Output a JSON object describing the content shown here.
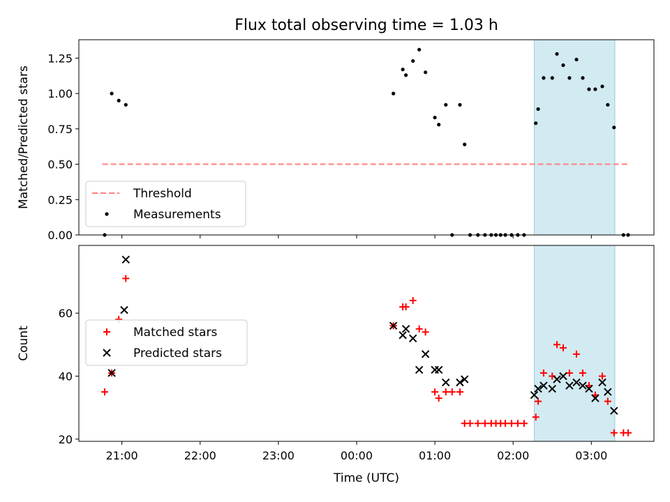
{
  "figure": {
    "title": "Flux total observing time = 1.03 h"
  },
  "chart_data": [
    {
      "type": "scatter",
      "title": "Flux total observing time = 1.03 h",
      "xlabel": "",
      "ylabel": "Matched/Predicted stars",
      "xlim": [
        -3.55,
        3.8
      ],
      "ylim": [
        0,
        1.38
      ],
      "yticks": [
        0.0,
        0.25,
        0.5,
        0.75,
        1.0,
        1.25
      ],
      "ytick_labels": [
        "0.00",
        "0.25",
        "0.50",
        "0.75",
        "1.00",
        "1.25"
      ],
      "x_units": "hours relative to 00:00 UTC",
      "shaded_region": {
        "x": [
          2.27,
          3.3
        ],
        "color": "#add8e6"
      },
      "legend": {
        "position": "lower-left"
      },
      "series": [
        {
          "name": "Threshold",
          "kind": "line",
          "style": "dashed",
          "color": "#ff7f7f",
          "x": [
            -3.25,
            3.47
          ],
          "y": [
            0.5,
            0.5
          ]
        },
        {
          "name": "Measurements",
          "kind": "points",
          "marker": "dot",
          "color": "#000000",
          "x": [
            -3.22,
            -3.13,
            -3.04,
            -2.95,
            0.47,
            0.59,
            0.63,
            0.72,
            0.8,
            0.88,
            1.0,
            1.05,
            1.14,
            1.22,
            1.32,
            1.38,
            1.45,
            1.55,
            1.64,
            1.72,
            1.78,
            1.84,
            1.9,
            1.98,
            2.06,
            2.14,
            2.29,
            2.32,
            2.39,
            2.5,
            2.56,
            2.64,
            2.72,
            2.81,
            2.89,
            2.97,
            3.05,
            3.14,
            3.21,
            3.29,
            3.41,
            3.47
          ],
          "y": [
            0.0,
            1.0,
            0.95,
            0.92,
            1.0,
            1.17,
            1.13,
            1.23,
            1.31,
            1.15,
            0.83,
            0.78,
            0.92,
            0.0,
            0.92,
            0.64,
            0.0,
            0.0,
            0.0,
            0.0,
            0.0,
            0.0,
            0.0,
            0.0,
            0.0,
            0.0,
            0.79,
            0.89,
            1.11,
            1.11,
            1.28,
            1.2,
            1.11,
            1.24,
            1.11,
            1.03,
            1.03,
            1.05,
            0.92,
            0.76,
            0.0,
            0.0
          ]
        }
      ]
    },
    {
      "type": "scatter",
      "xlabel": "Time (UTC)",
      "ylabel": "Count",
      "xlim": [
        -3.55,
        3.8
      ],
      "ylim": [
        19.3,
        81.5
      ],
      "yticks": [
        20,
        40,
        60
      ],
      "xticks": [
        -3,
        -2,
        -1,
        0,
        1,
        2,
        3
      ],
      "xtick_labels": [
        "21:00",
        "22:00",
        "23:00",
        "00:00",
        "01:00",
        "02:00",
        "03:00"
      ],
      "x_units": "hours relative to 00:00 UTC",
      "shaded_region": {
        "x": [
          2.27,
          3.3
        ],
        "color": "#add8e6"
      },
      "legend": {
        "position": "center-left"
      },
      "series": [
        {
          "name": "Matched stars",
          "kind": "points",
          "marker": "plus",
          "color": "#ff0000",
          "x": [
            -3.22,
            -3.13,
            -3.04,
            -2.95,
            0.47,
            0.59,
            0.63,
            0.72,
            0.8,
            0.88,
            1.0,
            1.05,
            1.14,
            1.22,
            1.32,
            1.38,
            1.45,
            1.55,
            1.64,
            1.72,
            1.78,
            1.84,
            1.9,
            1.98,
            2.06,
            2.14,
            2.29,
            2.32,
            2.39,
            2.5,
            2.56,
            2.64,
            2.72,
            2.81,
            2.89,
            2.97,
            3.05,
            3.14,
            3.21,
            3.29,
            3.41,
            3.47
          ],
          "y": [
            35,
            41,
            58,
            71,
            56,
            62,
            62,
            64,
            55,
            54,
            35,
            33,
            35,
            35,
            35,
            25,
            25,
            25,
            25,
            25,
            25,
            25,
            25,
            25,
            25,
            25,
            27,
            32,
            41,
            40,
            50,
            49,
            41,
            47,
            41,
            37,
            34,
            40,
            32,
            22,
            22,
            22
          ]
        },
        {
          "name": "Predicted stars",
          "kind": "points",
          "marker": "x",
          "color": "#000000",
          "x": [
            -3.13,
            -2.97,
            -2.95,
            0.47,
            0.59,
            0.63,
            0.72,
            0.8,
            0.88,
            1.0,
            1.05,
            1.14,
            1.32,
            1.38,
            2.27,
            2.32,
            2.39,
            2.5,
            2.56,
            2.64,
            2.72,
            2.81,
            2.89,
            2.97,
            3.05,
            3.14,
            3.21,
            3.29
          ],
          "y": [
            41,
            61,
            77,
            56,
            53,
            55,
            52,
            42,
            47,
            42,
            42,
            38,
            38,
            39,
            34,
            36,
            37,
            36,
            39,
            40,
            37,
            38,
            37,
            36,
            33,
            38,
            35,
            29
          ]
        }
      ]
    }
  ]
}
